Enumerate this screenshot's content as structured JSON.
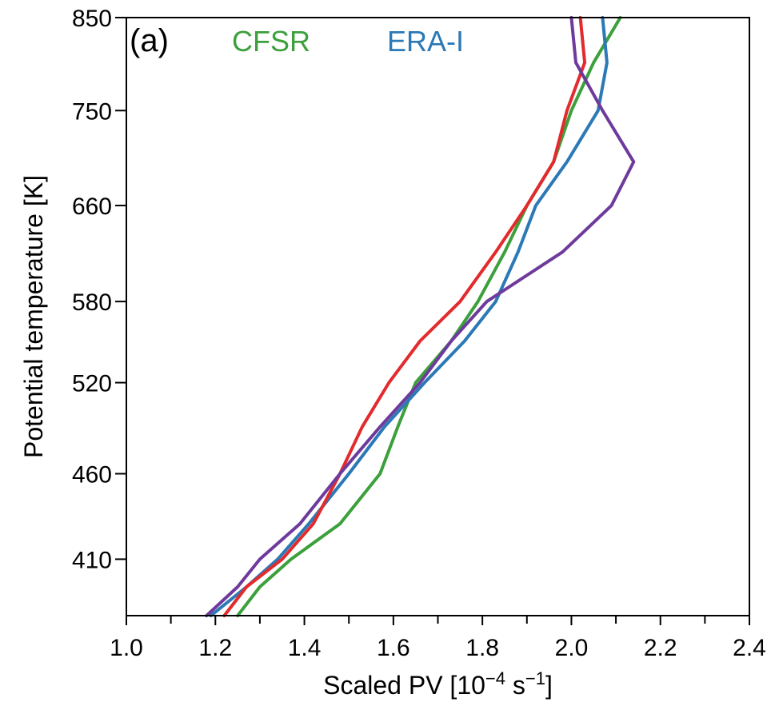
{
  "chart_data": {
    "type": "line",
    "panel_label": "(a)",
    "title": "",
    "xlabel": {
      "prefix": "Scaled PV [10",
      "exp1": "−4",
      "middle": " s",
      "exp2": "−1",
      "suffix": "]"
    },
    "ylabel": "Potential temperature [K]",
    "xlim": [
      1.0,
      2.4
    ],
    "ylim": [
      380,
      850
    ],
    "x_ticks": [
      1.0,
      1.2,
      1.4,
      1.6,
      1.8,
      2.0,
      2.2,
      2.4
    ],
    "x_tick_labels": [
      "1.0",
      "1.2",
      "1.4",
      "1.6",
      "1.8",
      "2.0",
      "2.2",
      "2.4"
    ],
    "y_ticks": [
      410,
      460,
      520,
      580,
      660,
      750,
      850
    ],
    "y_tick_labels": [
      "410",
      "460",
      "520",
      "580",
      "660",
      "750",
      "850"
    ],
    "log_y": true,
    "grid": false,
    "legend_position": "top-left",
    "levels": [
      380,
      395,
      410,
      430,
      460,
      490,
      520,
      550,
      580,
      620,
      660,
      700,
      750,
      800,
      850
    ],
    "series": [
      {
        "name": "CFSR",
        "color": "#3ca03c",
        "show_in_legend": true,
        "values": [
          1.25,
          1.3,
          1.37,
          1.48,
          1.57,
          1.61,
          1.65,
          1.73,
          1.79,
          1.85,
          1.9,
          1.96,
          2.0,
          2.05,
          2.11
        ]
      },
      {
        "name": "ERA-I",
        "color": "#2b79b6",
        "show_in_legend": true,
        "values": [
          1.19,
          1.27,
          1.34,
          1.41,
          1.5,
          1.58,
          1.67,
          1.76,
          1.83,
          1.88,
          1.92,
          1.99,
          2.06,
          2.08,
          2.07
        ]
      },
      {
        "name": "",
        "color": "#e32a2c",
        "show_in_legend": false,
        "values": [
          1.22,
          1.27,
          1.35,
          1.42,
          1.48,
          1.53,
          1.59,
          1.66,
          1.75,
          1.83,
          1.9,
          1.96,
          1.99,
          2.03,
          2.02
        ]
      },
      {
        "name": "",
        "color": "#6e3b9c",
        "show_in_legend": false,
        "values": [
          1.18,
          1.25,
          1.3,
          1.39,
          1.48,
          1.57,
          1.66,
          1.73,
          1.81,
          1.98,
          2.09,
          2.14,
          2.07,
          2.01,
          2.0
        ]
      }
    ]
  }
}
